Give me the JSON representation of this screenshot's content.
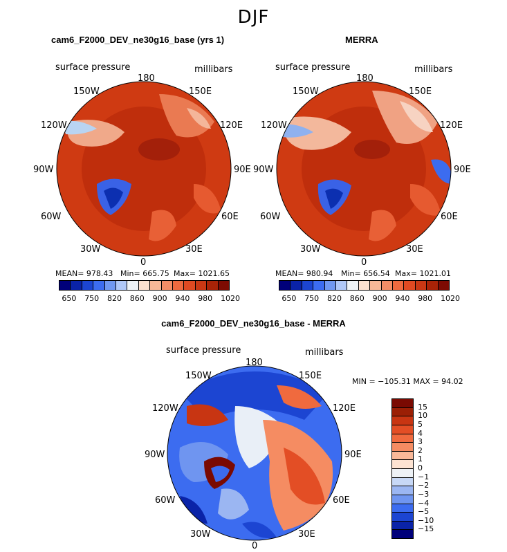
{
  "figure_title": "DJF",
  "panels": {
    "model": {
      "title": "cam6_F2000_DEV_ne30g16_base (yrs 1)",
      "left_label": "surface pressure",
      "right_label": "millibars",
      "stats": {
        "mean": "MEAN= 978.43",
        "min": "Min= 665.75",
        "max": "Max= 1021.65"
      }
    },
    "obs": {
      "title": "MERRA",
      "left_label": "surface pressure",
      "right_label": "millibars",
      "stats": {
        "mean": "MEAN= 980.94",
        "min": "Min= 656.54",
        "max": "Max= 1021.01"
      }
    },
    "diff": {
      "title": "cam6_F2000_DEV_ne30g16_base - MERRA",
      "left_label": "surface pressure",
      "right_label": "millibars",
      "minmax": "MIN = −105.31  MAX =  94.02"
    }
  },
  "longitude_labels": {
    "top": "180",
    "bottom": "0",
    "l150": "150W",
    "r150": "150E",
    "l120": "120W",
    "r120": "120E",
    "l90": "90W",
    "r90": "90E",
    "l60": "60W",
    "r60": "60E",
    "l30": "30W",
    "r30": "30E"
  },
  "colorbar_abs": {
    "colors": [
      "#00007a",
      "#0a23a8",
      "#1c45d2",
      "#3c6cf0",
      "#7098f2",
      "#b0c8f8",
      "#eef2f6",
      "#fbe0cf",
      "#f8b797",
      "#f48e67",
      "#ee6a3f",
      "#e04a22",
      "#c93814",
      "#a92307",
      "#7d0b02"
    ],
    "ticks": [
      "650",
      "750",
      "820",
      "860",
      "900",
      "940",
      "980",
      "1020"
    ]
  },
  "colorbar_diff": {
    "colors": [
      "#00007a",
      "#0a23a8",
      "#1c45d2",
      "#3c6cf0",
      "#6f95f0",
      "#9bb6f2",
      "#c7d8f6",
      "#eef2f6",
      "#fde3d2",
      "#f9b898",
      "#f58c62",
      "#f06a3e",
      "#e34e25",
      "#c83512",
      "#9b1f05",
      "#7a0a02"
    ],
    "ticks": [
      "−15",
      "−10",
      "−5",
      "−4",
      "−3",
      "−2",
      "−1",
      "0",
      "1",
      "2",
      "3",
      "4",
      "5",
      "10",
      "15"
    ]
  },
  "chart_data": [
    {
      "type": "heatmap",
      "title": "cam6_F2000_DEV_ne30g16_base (yrs 1)",
      "subtitle": "surface pressure",
      "units": "millibars",
      "projection": "north polar stereographic",
      "legend_levels": [
        650,
        750,
        820,
        860,
        900,
        940,
        980,
        1020
      ],
      "mean": 978.43,
      "min": 665.75,
      "max": 1021.65
    },
    {
      "type": "heatmap",
      "title": "MERRA",
      "subtitle": "surface pressure",
      "units": "millibars",
      "projection": "north polar stereographic",
      "legend_levels": [
        650,
        750,
        820,
        860,
        900,
        940,
        980,
        1020
      ],
      "mean": 980.94,
      "min": 656.54,
      "max": 1021.01
    },
    {
      "type": "heatmap",
      "title": "cam6_F2000_DEV_ne30g16_base - MERRA",
      "subtitle": "surface pressure",
      "units": "millibars",
      "projection": "north polar stereographic",
      "legend_levels": [
        -15,
        -10,
        -5,
        -4,
        -3,
        -2,
        -1,
        0,
        1,
        2,
        3,
        4,
        5,
        10,
        15
      ],
      "min": -105.31,
      "max": 94.02
    }
  ]
}
